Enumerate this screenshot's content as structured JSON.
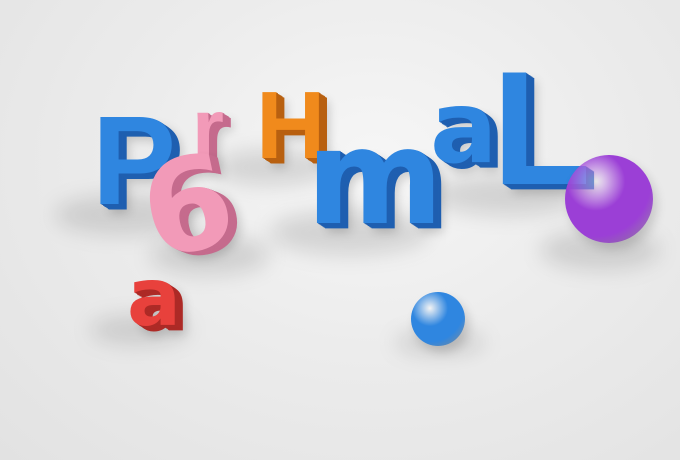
{
  "scene": {
    "background": "#ebebeb",
    "objects": [
      {
        "id": "letter-P",
        "kind": "glyph",
        "text": "P",
        "color": "#2f86e0",
        "depth": "#1f5fb0"
      },
      {
        "id": "letter-r",
        "kind": "glyph",
        "text": "r",
        "color": "#f29ab8",
        "depth": "#c56b8d"
      },
      {
        "id": "digit-6",
        "kind": "glyph",
        "text": "6",
        "color": "#f29ab8",
        "depth": "#c56b8d"
      },
      {
        "id": "letter-H",
        "kind": "glyph",
        "text": "H",
        "color": "#f08a1c",
        "depth": "#b86010"
      },
      {
        "id": "letter-m",
        "kind": "glyph",
        "text": "m",
        "color": "#2f86e0",
        "depth": "#1f5fb0"
      },
      {
        "id": "letter-a-blue",
        "kind": "glyph",
        "text": "a",
        "color": "#2f86e0",
        "depth": "#1f5fb0"
      },
      {
        "id": "letter-L",
        "kind": "glyph",
        "text": "L",
        "color": "#2f86e0",
        "depth": "#1f5fb0"
      },
      {
        "id": "letter-a-red",
        "kind": "glyph",
        "text": "a",
        "color": "#e8413c",
        "depth": "#ad2a26"
      },
      {
        "id": "sphere-purple",
        "kind": "sphere",
        "color": "#9b3fd6"
      },
      {
        "id": "sphere-blue",
        "kind": "sphere",
        "color": "#2f86e0"
      }
    ]
  }
}
